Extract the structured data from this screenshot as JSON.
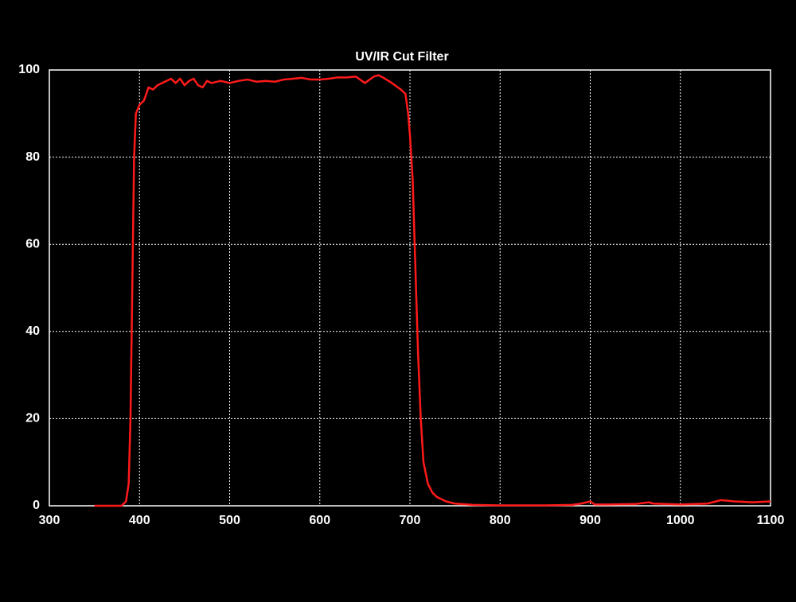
{
  "chart_data": {
    "type": "line",
    "title": "UV/IR Cut Filter",
    "xlim": [
      300,
      1100
    ],
    "xticks": [
      300,
      400,
      500,
      600,
      700,
      800,
      900,
      1000,
      1100
    ],
    "ylim": [
      0,
      100
    ],
    "yticks": [
      0,
      20,
      40,
      60,
      80,
      100
    ],
    "grid": true,
    "series": [
      {
        "color": "#ff1a1a",
        "x": [
          350,
          380,
          385,
          388,
          390,
          392,
          394,
          396,
          400,
          405,
          410,
          415,
          420,
          425,
          430,
          435,
          440,
          445,
          450,
          455,
          460,
          465,
          470,
          475,
          480,
          490,
          500,
          510,
          520,
          530,
          540,
          550,
          560,
          570,
          580,
          590,
          600,
          610,
          620,
          630,
          640,
          650,
          660,
          665,
          670,
          680,
          690,
          695,
          698,
          700,
          703,
          706,
          709,
          712,
          715,
          720,
          725,
          730,
          740,
          750,
          770,
          800,
          850,
          880,
          890,
          900,
          905,
          920,
          950,
          965,
          970,
          1000,
          1030,
          1045,
          1060,
          1080,
          1100
        ],
        "values": [
          0,
          0,
          1,
          5,
          20,
          50,
          80,
          90,
          92,
          93,
          96,
          95.5,
          96.5,
          97,
          97.5,
          98,
          97,
          98,
          96.5,
          97.5,
          98,
          96.5,
          96,
          97.5,
          97,
          97.5,
          97,
          97.5,
          97.8,
          97.3,
          97.5,
          97.3,
          97.8,
          98,
          98.2,
          97.8,
          97.8,
          98,
          98.3,
          98.3,
          98.5,
          97,
          98.5,
          98.8,
          98.3,
          97,
          95.5,
          94.5,
          90,
          85,
          75,
          55,
          35,
          20,
          10,
          5,
          3,
          2,
          1,
          0.5,
          0.2,
          0.1,
          0.1,
          0.2,
          0.5,
          1,
          0.3,
          0.3,
          0.4,
          0.8,
          0.5,
          0.3,
          0.5,
          1.3,
          1,
          0.8,
          1
        ]
      }
    ]
  }
}
